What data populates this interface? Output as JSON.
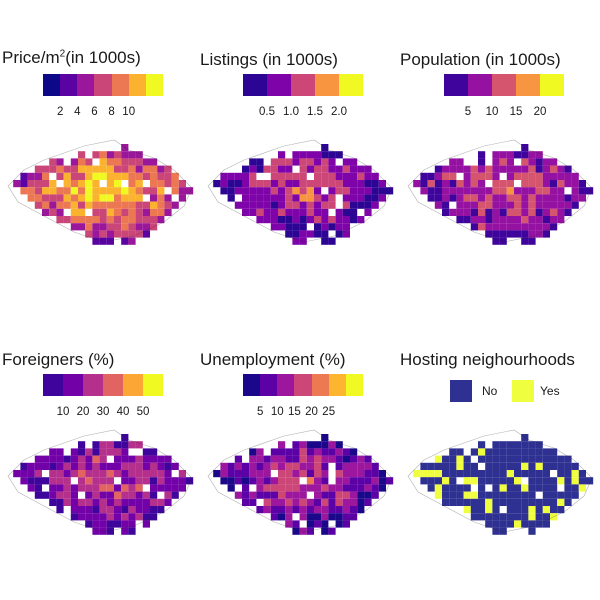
{
  "panels": [
    {
      "id": "price",
      "title_prefix": "Price/m",
      "title_sup": "2",
      "title_suffix": "(in 1000s)",
      "ticks": [
        "2",
        "4",
        "6",
        "8",
        "10"
      ],
      "colors": [
        "#0d0887",
        "#5b02a3",
        "#9a179b",
        "#cb4678",
        "#eb7852",
        "#fbb32f",
        "#f0f921"
      ]
    },
    {
      "id": "listings",
      "title": "Listings (in 1000s)",
      "ticks": [
        "0.5",
        "1.0",
        "1.5",
        "2.0"
      ],
      "colors": [
        "#2c0594",
        "#7e03a8",
        "#cc4778",
        "#f89540",
        "#f0f921"
      ]
    },
    {
      "id": "population",
      "title": "Population (in 1000s)",
      "ticks": [
        "5",
        "10",
        "15",
        "20"
      ],
      "colors": [
        "#3e049c",
        "#9511a1",
        "#d5546e",
        "#f89540",
        "#f0f921"
      ]
    },
    {
      "id": "foreigners",
      "title": "Foreigners (%)",
      "ticks": [
        "10",
        "20",
        "30",
        "40",
        "50"
      ],
      "colors": [
        "#3e049c",
        "#7201a8",
        "#b52f8c",
        "#e16462",
        "#fca636",
        "#f0f921"
      ]
    },
    {
      "id": "unemployment",
      "title": "Unemployment (%)",
      "ticks": [
        "5",
        "10",
        "15",
        "20",
        "25"
      ],
      "colors": [
        "#1a078a",
        "#5c01a6",
        "#9c179e",
        "#cc4778",
        "#ed7953",
        "#fdb42f",
        "#f0f921"
      ]
    },
    {
      "id": "hosting",
      "title": "Hosting neighourhoods",
      "legend": [
        {
          "label": "No",
          "color": "#2e3192"
        },
        {
          "label": "Yes",
          "color": "#efff3f"
        }
      ]
    }
  ]
}
